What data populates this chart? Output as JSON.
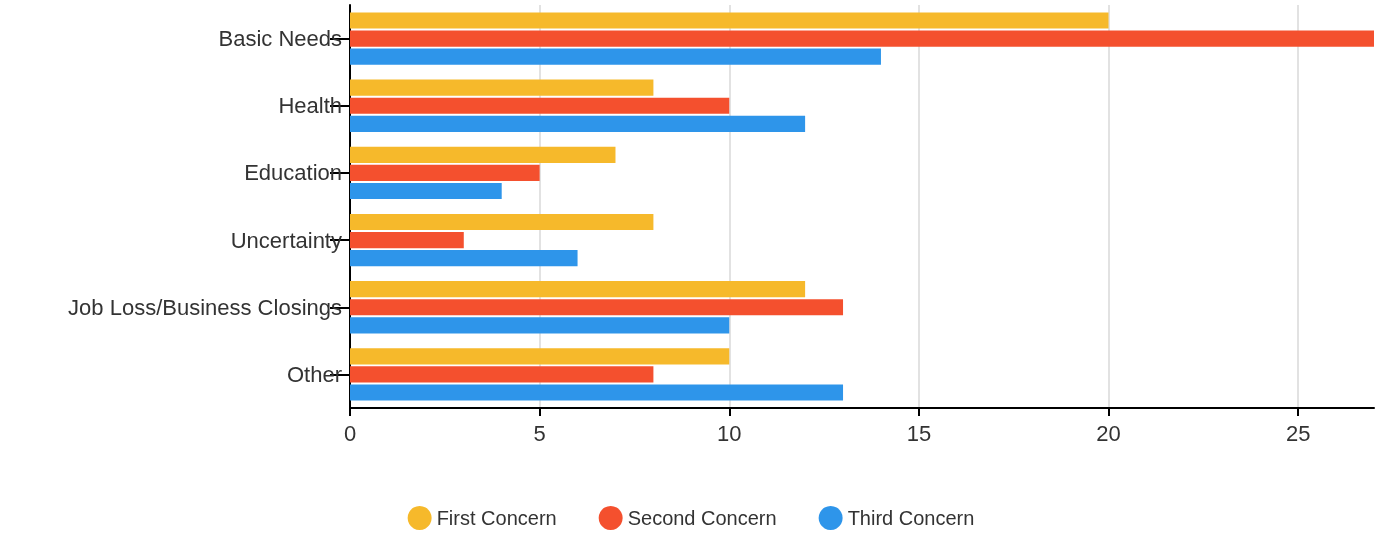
{
  "chart_data": {
    "type": "bar",
    "orientation": "horizontal",
    "categories": [
      "Basic Needs",
      "Health",
      "Education",
      "Uncertainty",
      "Job Loss/Business Closings",
      "Other"
    ],
    "series": [
      {
        "name": "First Concern",
        "color": "#f6b92b",
        "values": [
          20,
          8,
          7,
          8,
          12,
          10
        ]
      },
      {
        "name": "Second Concern",
        "color": "#f4502e",
        "values": [
          27,
          10,
          5,
          3,
          13,
          8
        ]
      },
      {
        "name": "Third Concern",
        "color": "#2e95ea",
        "values": [
          14,
          12,
          4,
          6,
          10,
          13
        ]
      }
    ],
    "xlim": [
      0,
      27
    ],
    "xticks": [
      0,
      5,
      10,
      15,
      20,
      25
    ],
    "grid": "x",
    "legend": "bottom"
  }
}
